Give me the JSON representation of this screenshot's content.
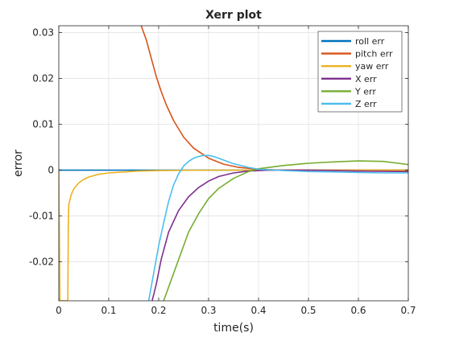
{
  "chart_data": {
    "type": "line",
    "title": "Xerr plot",
    "xlabel": "time(s)",
    "ylabel": "error",
    "xlim": [
      0,
      0.7
    ],
    "ylim": [
      -0.0285,
      0.0315
    ],
    "xticks": [
      {
        "value": 0,
        "label": "0"
      },
      {
        "value": 0.1,
        "label": "0.1"
      },
      {
        "value": 0.2,
        "label": "0.2"
      },
      {
        "value": 0.3,
        "label": "0.3"
      },
      {
        "value": 0.4,
        "label": "0.4"
      },
      {
        "value": 0.5,
        "label": "0.5"
      },
      {
        "value": 0.6,
        "label": "0.6"
      },
      {
        "value": 0.7,
        "label": "0.7"
      }
    ],
    "yticks": [
      {
        "value": 0.03,
        "label": "0.03"
      },
      {
        "value": 0.02,
        "label": "0.02"
      },
      {
        "value": 0.01,
        "label": "0.01"
      },
      {
        "value": 0,
        "label": "0"
      },
      {
        "value": -0.01,
        "label": "-0.01"
      },
      {
        "value": -0.02,
        "label": "-0.02"
      }
    ],
    "grid": true,
    "legend_position": "top-right",
    "series": [
      {
        "name": "roll err",
        "color": "#0072BD",
        "x": [
          0,
          0.05,
          0.1,
          0.2,
          0.3,
          0.4,
          0.5,
          0.6,
          0.7
        ],
        "y": [
          0,
          0,
          0,
          0,
          0,
          0,
          0,
          0,
          0
        ]
      },
      {
        "name": "pitch err",
        "color": "#D95319",
        "x": [
          0.165,
          0.175,
          0.185,
          0.195,
          0.205,
          0.215,
          0.23,
          0.25,
          0.27,
          0.3,
          0.33,
          0.36,
          0.4,
          0.45,
          0.5,
          0.6,
          0.7
        ],
        "y": [
          0.0315,
          0.0285,
          0.0245,
          0.0205,
          0.0172,
          0.0143,
          0.0108,
          0.0072,
          0.0048,
          0.0026,
          0.0013,
          0.0006,
          0.0002,
          0.0,
          0.0,
          0.0,
          0.0
        ]
      },
      {
        "name": "yaw err",
        "color": "#EDB120",
        "x": [
          0,
          0.001,
          0.002,
          0.0025,
          0.018,
          0.019,
          0.02,
          0.025,
          0.03,
          0.04,
          0.05,
          0.06,
          0.08,
          0.1,
          0.13,
          0.16,
          0.2,
          0.3,
          0.4,
          0.5,
          0.6,
          0.7
        ],
        "y": [
          0,
          -0.012,
          -0.024,
          -0.0285,
          -0.0285,
          -0.012,
          -0.0075,
          -0.0053,
          -0.0041,
          -0.0028,
          -0.002,
          -0.0015,
          -0.0009,
          -0.0006,
          -0.0004,
          -0.0002,
          -0.0001,
          0,
          0,
          0,
          0,
          0
        ]
      },
      {
        "name": "X err",
        "color": "#7E2F8E",
        "x": [
          0.187,
          0.195,
          0.205,
          0.22,
          0.24,
          0.26,
          0.28,
          0.3,
          0.32,
          0.35,
          0.38,
          0.42,
          0.5,
          0.6,
          0.7
        ],
        "y": [
          -0.0285,
          -0.025,
          -0.0195,
          -0.0135,
          -0.0088,
          -0.0058,
          -0.0038,
          -0.0024,
          -0.0014,
          -0.0006,
          -0.0002,
          0.0,
          0.0,
          -0.0002,
          -0.0003
        ]
      },
      {
        "name": "Y err",
        "color": "#77AC30",
        "x": [
          0.21,
          0.22,
          0.24,
          0.26,
          0.28,
          0.3,
          0.32,
          0.35,
          0.38,
          0.4,
          0.45,
          0.5,
          0.55,
          0.6,
          0.65,
          0.68,
          0.7
        ],
        "y": [
          -0.0285,
          -0.0255,
          -0.0195,
          -0.0135,
          -0.0095,
          -0.0062,
          -0.004,
          -0.0018,
          -0.0003,
          0.0003,
          0.001,
          0.0015,
          0.0018,
          0.002,
          0.0019,
          0.0015,
          0.0012
        ]
      },
      {
        "name": "Z err",
        "color": "#4DBEEE",
        "x": [
          0.18,
          0.19,
          0.2,
          0.21,
          0.22,
          0.23,
          0.24,
          0.25,
          0.26,
          0.27,
          0.28,
          0.29,
          0.3,
          0.31,
          0.33,
          0.35,
          0.38,
          0.4,
          0.45,
          0.5,
          0.55,
          0.6,
          0.65,
          0.7
        ],
        "y": [
          -0.0285,
          -0.0225,
          -0.0165,
          -0.0115,
          -0.0068,
          -0.0032,
          -0.0008,
          0.0009,
          0.0019,
          0.0026,
          0.003,
          0.0032,
          0.0032,
          0.003,
          0.0022,
          0.0014,
          0.0006,
          0.0002,
          -0.0001,
          -0.0003,
          -0.0004,
          -0.0005,
          -0.0006,
          -0.0006
        ]
      }
    ]
  }
}
